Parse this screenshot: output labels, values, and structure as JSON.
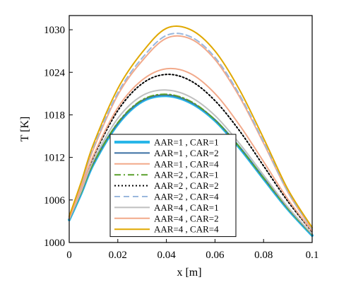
{
  "chart_data": {
    "type": "line",
    "title": "",
    "xlabel": "x  [m]",
    "ylabel": "T [K]",
    "xlim": [
      0,
      0.1
    ],
    "ylim": [
      1000,
      1032
    ],
    "xticks": [
      0,
      0.02,
      0.04,
      0.06,
      0.08,
      0.1
    ],
    "xtick_labels": [
      "0",
      "0.02",
      "0.04",
      "0.06",
      "0.08",
      "0.1"
    ],
    "yticks": [
      1000,
      1006,
      1012,
      1018,
      1024,
      1030
    ],
    "ytick_labels": [
      "1000",
      "1006",
      "1012",
      "1018",
      "1024",
      "1030"
    ],
    "grid": false,
    "legend_position": "bottom-center",
    "series": [
      {
        "name": "AAR=1 , CAR=1",
        "color": "#29b6e8",
        "style": "solid",
        "width": 4,
        "x": [
          0,
          0.005,
          0.01,
          0.02,
          0.03,
          0.04,
          0.05,
          0.06,
          0.07,
          0.08,
          0.09,
          0.1
        ],
        "y": [
          1003.2,
          1007.0,
          1011.1,
          1016.7,
          1019.9,
          1020.7,
          1019.7,
          1017.2,
          1013.4,
          1009.0,
          1004.7,
          1001.0
        ]
      },
      {
        "name": "AAR=1 , CAR=2",
        "color": "#3a6fa3",
        "style": "solid",
        "width": 2,
        "x": [
          0,
          0.005,
          0.01,
          0.02,
          0.03,
          0.04,
          0.05,
          0.06,
          0.07,
          0.08,
          0.09,
          0.1
        ],
        "y": [
          1003.3,
          1007.1,
          1011.2,
          1016.8,
          1020.0,
          1020.8,
          1019.8,
          1017.3,
          1013.5,
          1009.1,
          1004.8,
          1001.1
        ]
      },
      {
        "name": "AAR=1 , CAR=4",
        "color": "#f2a98a",
        "style": "solid",
        "width": 2,
        "x": [
          0,
          0.005,
          0.01,
          0.02,
          0.03,
          0.04,
          0.05,
          0.06,
          0.07,
          0.08,
          0.09,
          0.1
        ],
        "y": [
          1003.5,
          1008.2,
          1013.2,
          1020.8,
          1025.6,
          1028.8,
          1028.7,
          1025.8,
          1020.6,
          1014.0,
          1007.1,
          1001.8
        ]
      },
      {
        "name": "AAR=2 , CAR=1",
        "color": "#5aa02c",
        "style": "dashdot",
        "width": 2,
        "x": [
          0,
          0.005,
          0.01,
          0.02,
          0.03,
          0.04,
          0.05,
          0.06,
          0.07,
          0.08,
          0.09,
          0.1
        ],
        "y": [
          1003.3,
          1007.1,
          1011.2,
          1016.9,
          1020.1,
          1020.9,
          1019.9,
          1017.3,
          1013.5,
          1009.1,
          1004.8,
          1001.1
        ]
      },
      {
        "name": "AAR=2 , CAR=2",
        "color": "#000000",
        "style": "dotted",
        "width": 2,
        "x": [
          0,
          0.005,
          0.01,
          0.02,
          0.03,
          0.04,
          0.05,
          0.06,
          0.07,
          0.08,
          0.09,
          0.1
        ],
        "y": [
          1003.4,
          1007.6,
          1012.1,
          1018.6,
          1022.4,
          1023.7,
          1022.8,
          1020.0,
          1015.8,
          1010.8,
          1005.8,
          1001.5
        ]
      },
      {
        "name": "AAR=2 , CAR=4",
        "color": "#9ab8dd",
        "style": "dashed",
        "width": 2,
        "x": [
          0,
          0.005,
          0.01,
          0.02,
          0.03,
          0.04,
          0.05,
          0.06,
          0.07,
          0.08,
          0.09,
          0.1
        ],
        "y": [
          1003.6,
          1008.4,
          1013.5,
          1021.1,
          1026.0,
          1029.2,
          1029.0,
          1026.1,
          1020.9,
          1014.2,
          1007.2,
          1001.9
        ]
      },
      {
        "name": "AAR=4 , CAR=1",
        "color": "#bfbfbf",
        "style": "solid",
        "width": 2,
        "x": [
          0,
          0.005,
          0.01,
          0.02,
          0.03,
          0.04,
          0.05,
          0.06,
          0.07,
          0.08,
          0.09,
          0.1
        ],
        "y": [
          1003.3,
          1007.3,
          1011.6,
          1017.5,
          1020.7,
          1021.5,
          1020.5,
          1017.9,
          1014.0,
          1009.5,
          1005.0,
          1001.2
        ]
      },
      {
        "name": "AAR=4 , CAR=2",
        "color": "#f2a98a",
        "style": "solid",
        "width": 2,
        "x": [
          0,
          0.005,
          0.01,
          0.02,
          0.03,
          0.04,
          0.05,
          0.06,
          0.07,
          0.08,
          0.09,
          0.1
        ],
        "y": [
          1003.4,
          1007.7,
          1012.3,
          1019.0,
          1022.9,
          1024.5,
          1023.8,
          1021.0,
          1016.6,
          1011.4,
          1006.1,
          1001.6
        ]
      },
      {
        "name": "AAR=4 , CAR=4",
        "color": "#e0a800",
        "style": "solid",
        "width": 2,
        "x": [
          0,
          0.005,
          0.01,
          0.02,
          0.03,
          0.04,
          0.05,
          0.06,
          0.07,
          0.08,
          0.09,
          0.1
        ],
        "y": [
          1003.7,
          1008.6,
          1013.9,
          1021.7,
          1026.8,
          1030.2,
          1030.0,
          1027.0,
          1021.6,
          1014.7,
          1007.5,
          1002.1
        ]
      }
    ]
  }
}
